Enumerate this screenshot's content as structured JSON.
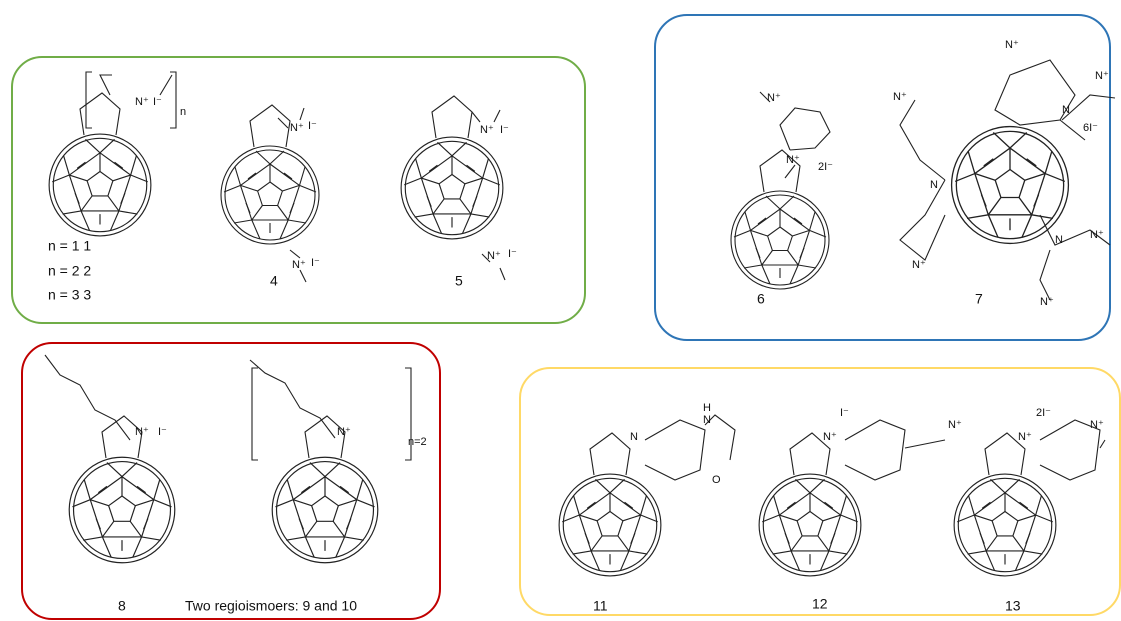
{
  "labels": [
    "n = 1  1",
    "n = 2  2",
    "n = 3  3",
    "4",
    "5",
    "6",
    "7",
    "8",
    "Two regioismoers: 9 and 10",
    "11",
    "12",
    "13"
  ],
  "annotations": [
    "n",
    "n=2",
    "2I⁻",
    "6I⁻",
    "2I⁻"
  ],
  "atoms": [
    "N⁺",
    "I⁻",
    "N⁺",
    "I⁻",
    "N⁺",
    "I⁻",
    "N⁺",
    "I⁻",
    "N⁺",
    "I⁻",
    "N⁺",
    "N⁺",
    "N⁺",
    "N",
    "N⁺",
    "N⁺",
    "N",
    "N⁺",
    "N",
    "N⁺",
    "N⁺",
    "N⁺",
    "I⁻",
    "N⁺",
    "N",
    "H",
    "N",
    "O",
    "N⁺",
    "I⁻",
    "N⁺",
    "N⁺",
    "N⁺"
  ]
}
